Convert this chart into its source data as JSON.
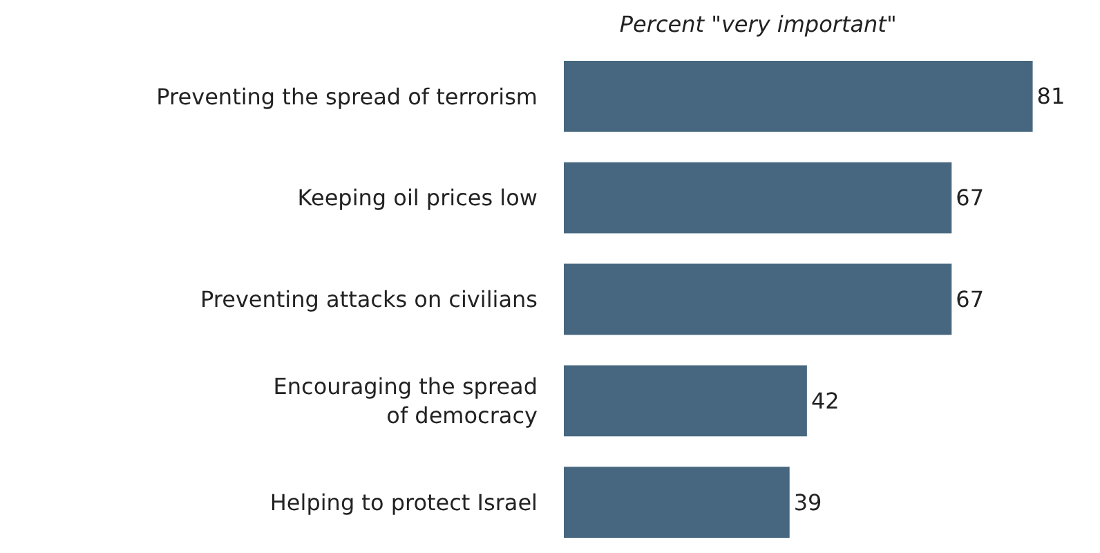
{
  "chart_data": {
    "type": "bar",
    "orientation": "horizontal",
    "title": "Percent \"very important\"",
    "categories": [
      "Preventing the spread of terrorism",
      "Keeping oil prices low",
      "Preventing attacks on civilians",
      "Encouraging the spread of democracy",
      "Helping to protect Israel"
    ],
    "values": [
      81,
      67,
      67,
      42,
      39
    ],
    "color": "#46677f",
    "data_labels": true
  }
}
